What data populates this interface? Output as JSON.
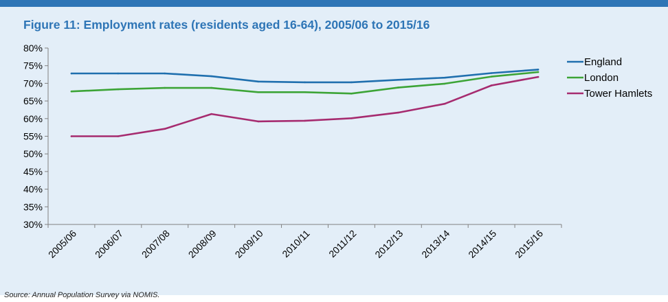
{
  "figure": {
    "title": "Figure 11: Employment rates (residents aged 16-64), 2005/06 to 2015/16",
    "source": "Source: Annual Population Survey via NOMIS."
  },
  "chart_data": {
    "type": "line",
    "title": "Figure 11: Employment rates (residents aged 16-64), 2005/06 to 2015/16",
    "xlabel": "",
    "ylabel": "",
    "ylim": [
      30,
      80
    ],
    "y_ticks": [
      30,
      35,
      40,
      45,
      50,
      55,
      60,
      65,
      70,
      75,
      80
    ],
    "y_tick_suffix": "%",
    "grid": false,
    "legend_position": "right",
    "categories": [
      "2005/06",
      "2006/07",
      "2007/08",
      "2008/09",
      "2009/10",
      "2010/11",
      "2011/12",
      "2012/13",
      "2013/14",
      "2014/15",
      "2015/16"
    ],
    "series": [
      {
        "name": "England",
        "color": "#1f6fae",
        "values": [
          72.8,
          72.8,
          72.8,
          72.0,
          70.5,
          70.3,
          70.3,
          71.0,
          71.6,
          72.9,
          73.9
        ]
      },
      {
        "name": "London",
        "color": "#3ca436",
        "values": [
          67.7,
          68.3,
          68.7,
          68.7,
          67.5,
          67.5,
          67.1,
          68.8,
          69.9,
          71.9,
          73.2
        ]
      },
      {
        "name": "Tower Hamlets",
        "color": "#a62b6f",
        "values": [
          55.0,
          55.0,
          57.1,
          61.3,
          59.2,
          59.4,
          60.1,
          61.7,
          64.2,
          69.4,
          71.8
        ]
      }
    ]
  }
}
